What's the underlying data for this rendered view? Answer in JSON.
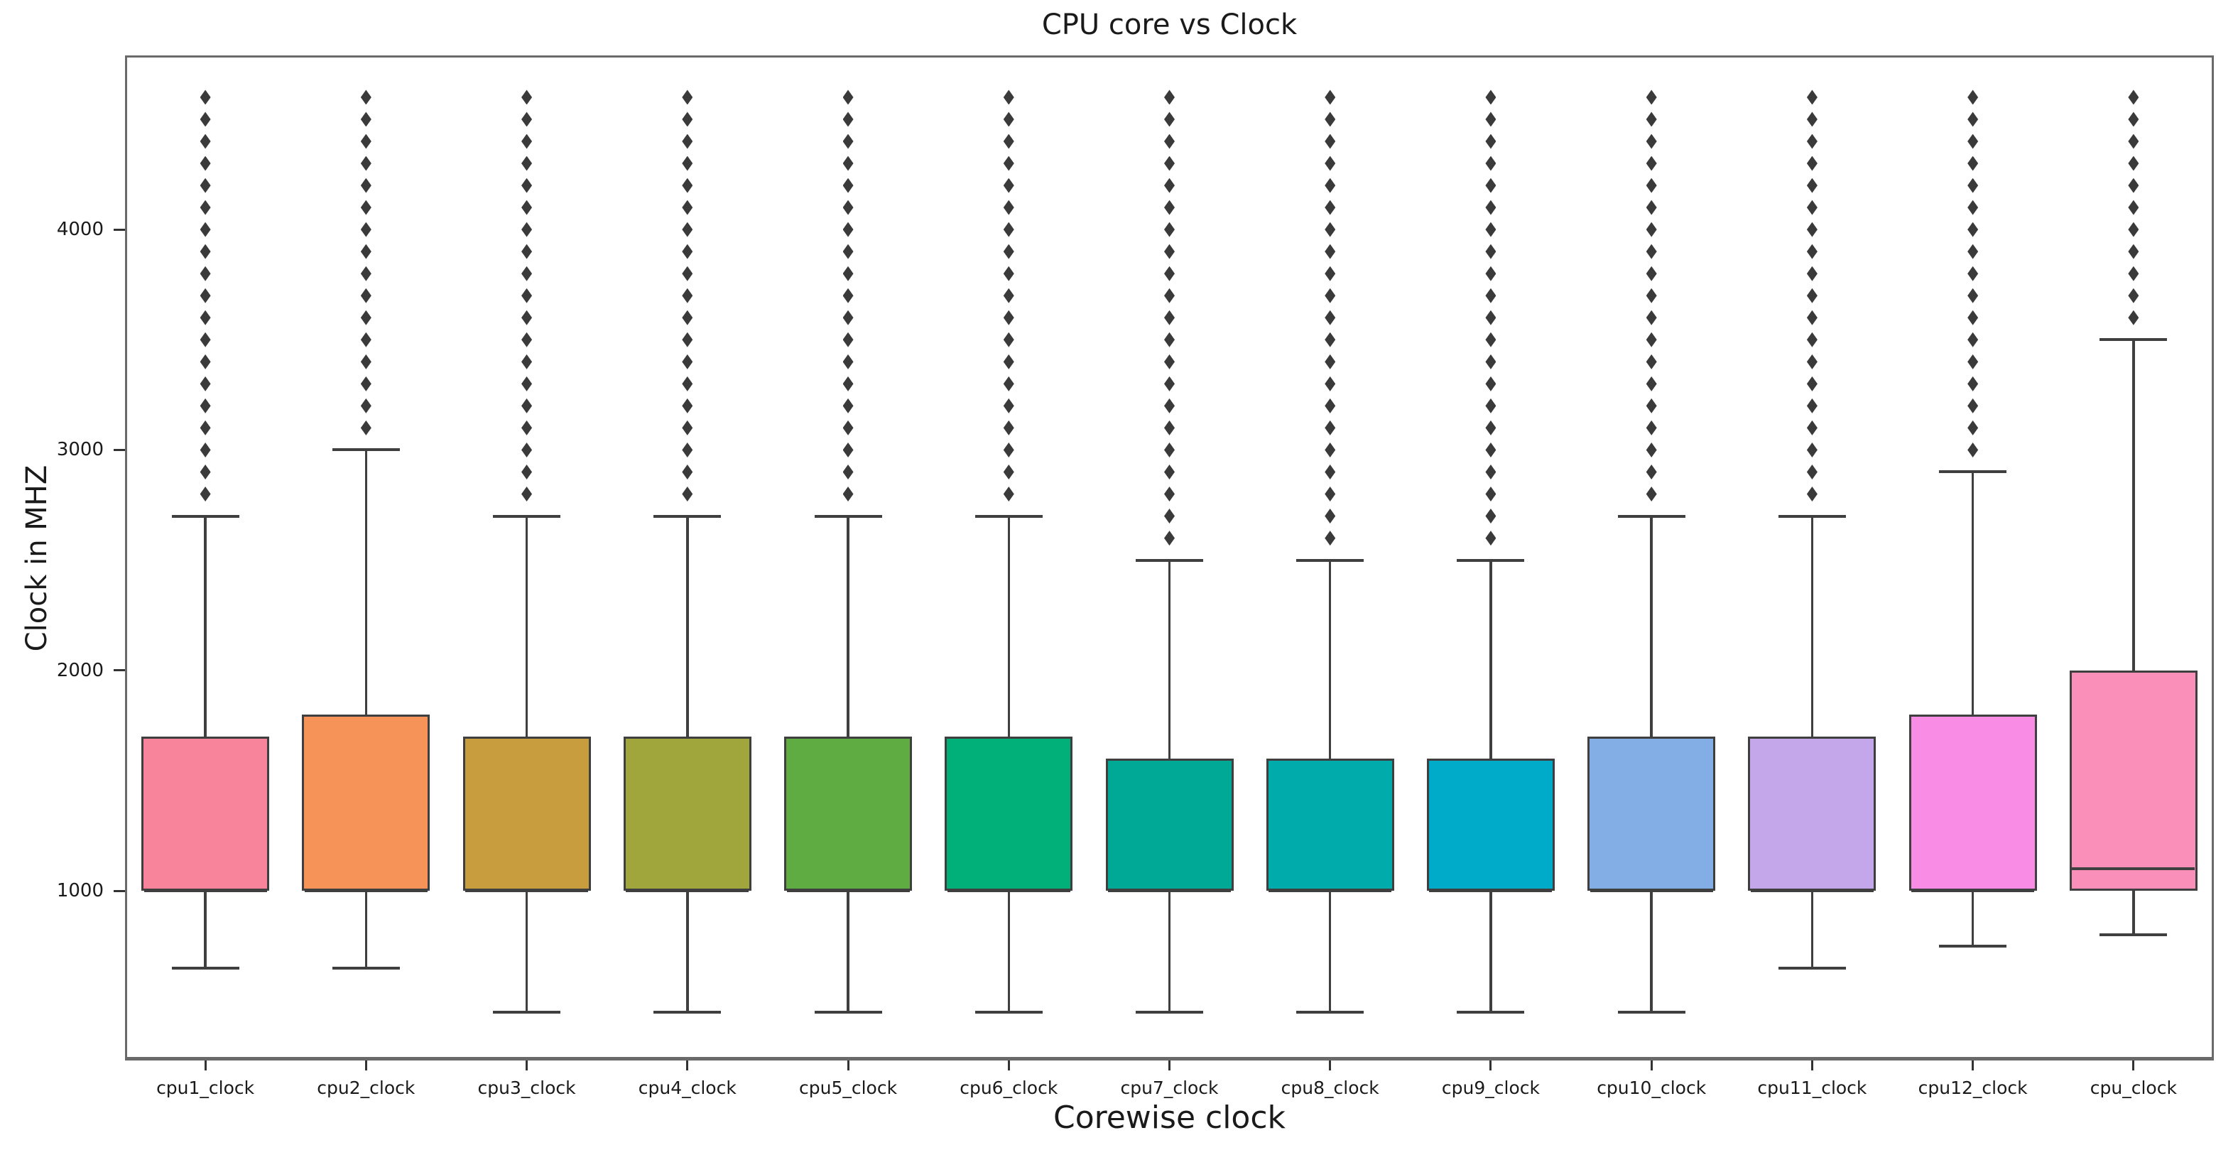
{
  "figure": {
    "title": "CPU core vs Clock",
    "x_axis_label": "Corewise clock",
    "y_axis_label": "Clock in MHZ",
    "background_color": "#ffffff"
  },
  "style": {
    "box_edge_color": "#3f3f3f",
    "whisker_color": "#3f3f3f",
    "flier_color": "#3a3a3a",
    "spine_color": "#6a6a6a",
    "text_color": "#1a1a1a"
  },
  "chart_data": {
    "type": "box",
    "title": "CPU core vs Clock",
    "xlabel": "Corewise clock",
    "ylabel": "Clock in MHZ",
    "ylim": [
      230,
      4790
    ],
    "yticks": [
      1000,
      2000,
      3000,
      4000
    ],
    "grid": false,
    "legend": false,
    "categories": [
      "cpu1_clock",
      "cpu2_clock",
      "cpu3_clock",
      "cpu4_clock",
      "cpu5_clock",
      "cpu6_clock",
      "cpu7_clock",
      "cpu8_clock",
      "cpu9_clock",
      "cpu10_clock",
      "cpu11_clock",
      "cpu12_clock",
      "cpu_clock"
    ],
    "series": [
      {
        "label": "cpu1_clock",
        "color": "#f8849b",
        "whisker_low": 650,
        "q1": 1000,
        "median": 1000,
        "q3": 1700,
        "whisker_high": 2700,
        "fliers": [
          2800,
          2900,
          3000,
          3100,
          3200,
          3300,
          3400,
          3500,
          3600,
          3700,
          3800,
          3900,
          4000,
          4100,
          4200,
          4300,
          4400,
          4500,
          4600
        ]
      },
      {
        "label": "cpu2_clock",
        "color": "#f59358",
        "whisker_low": 650,
        "q1": 1000,
        "median": 1000,
        "q3": 1800,
        "whisker_high": 3000,
        "fliers": [
          3100,
          3200,
          3300,
          3400,
          3500,
          3600,
          3700,
          3800,
          3900,
          4000,
          4100,
          4200,
          4300,
          4400,
          4500,
          4600
        ]
      },
      {
        "label": "cpu3_clock",
        "color": "#c79d3d",
        "whisker_low": 450,
        "q1": 1000,
        "median": 1000,
        "q3": 1700,
        "whisker_high": 2700,
        "fliers": [
          2800,
          2900,
          3000,
          3100,
          3200,
          3300,
          3400,
          3500,
          3600,
          3700,
          3800,
          3900,
          4000,
          4100,
          4200,
          4300,
          4400,
          4500,
          4600
        ]
      },
      {
        "label": "cpu4_clock",
        "color": "#a0a53c",
        "whisker_low": 450,
        "q1": 1000,
        "median": 1000,
        "q3": 1700,
        "whisker_high": 2700,
        "fliers": [
          2800,
          2900,
          3000,
          3100,
          3200,
          3300,
          3400,
          3500,
          3600,
          3700,
          3800,
          3900,
          4000,
          4100,
          4200,
          4300,
          4400,
          4500,
          4600
        ]
      },
      {
        "label": "cpu5_clock",
        "color": "#5fac42",
        "whisker_low": 450,
        "q1": 1000,
        "median": 1000,
        "q3": 1700,
        "whisker_high": 2700,
        "fliers": [
          2800,
          2900,
          3000,
          3100,
          3200,
          3300,
          3400,
          3500,
          3600,
          3700,
          3800,
          3900,
          4000,
          4100,
          4200,
          4300,
          4400,
          4500,
          4600
        ]
      },
      {
        "label": "cpu6_clock",
        "color": "#00b078",
        "whisker_low": 450,
        "q1": 1000,
        "median": 1000,
        "q3": 1700,
        "whisker_high": 2700,
        "fliers": [
          2800,
          2900,
          3000,
          3100,
          3200,
          3300,
          3400,
          3500,
          3600,
          3700,
          3800,
          3900,
          4000,
          4100,
          4200,
          4300,
          4400,
          4500,
          4600
        ]
      },
      {
        "label": "cpu7_clock",
        "color": "#00a996",
        "whisker_low": 450,
        "q1": 1000,
        "median": 1000,
        "q3": 1600,
        "whisker_high": 2500,
        "fliers": [
          2600,
          2700,
          2800,
          2900,
          3000,
          3100,
          3200,
          3300,
          3400,
          3500,
          3600,
          3700,
          3800,
          3900,
          4000,
          4100,
          4200,
          4300,
          4400,
          4500,
          4600
        ]
      },
      {
        "label": "cpu8_clock",
        "color": "#00abac",
        "whisker_low": 450,
        "q1": 1000,
        "median": 1000,
        "q3": 1600,
        "whisker_high": 2500,
        "fliers": [
          2600,
          2700,
          2800,
          2900,
          3000,
          3100,
          3200,
          3300,
          3400,
          3500,
          3600,
          3700,
          3800,
          3900,
          4000,
          4100,
          4200,
          4300,
          4400,
          4500,
          4600
        ]
      },
      {
        "label": "cpu9_clock",
        "color": "#00aac9",
        "whisker_low": 450,
        "q1": 1000,
        "median": 1000,
        "q3": 1600,
        "whisker_high": 2500,
        "fliers": [
          2600,
          2700,
          2800,
          2900,
          3000,
          3100,
          3200,
          3300,
          3400,
          3500,
          3600,
          3700,
          3800,
          3900,
          4000,
          4100,
          4200,
          4300,
          4400,
          4500,
          4600
        ]
      },
      {
        "label": "cpu10_clock",
        "color": "#82ade5",
        "whisker_low": 450,
        "q1": 1000,
        "median": 1000,
        "q3": 1700,
        "whisker_high": 2700,
        "fliers": [
          2800,
          2900,
          3000,
          3100,
          3200,
          3300,
          3400,
          3500,
          3600,
          3700,
          3800,
          3900,
          4000,
          4100,
          4200,
          4300,
          4400,
          4500,
          4600
        ]
      },
      {
        "label": "cpu11_clock",
        "color": "#c4a6ea",
        "whisker_low": 650,
        "q1": 1000,
        "median": 1000,
        "q3": 1700,
        "whisker_high": 2700,
        "fliers": [
          2800,
          2900,
          3000,
          3100,
          3200,
          3300,
          3400,
          3500,
          3600,
          3700,
          3800,
          3900,
          4000,
          4100,
          4200,
          4300,
          4400,
          4500,
          4600
        ]
      },
      {
        "label": "cpu12_clock",
        "color": "#f98ce4",
        "whisker_low": 750,
        "q1": 1000,
        "median": 1000,
        "q3": 1800,
        "whisker_high": 2900,
        "fliers": [
          3000,
          3100,
          3200,
          3300,
          3400,
          3500,
          3600,
          3700,
          3800,
          3900,
          4000,
          4100,
          4200,
          4300,
          4400,
          4500,
          4600
        ]
      },
      {
        "label": "cpu_clock",
        "color": "#fa90b9",
        "whisker_low": 800,
        "q1": 1000,
        "median": 1100,
        "q3": 2000,
        "whisker_high": 3500,
        "fliers": [
          3600,
          3700,
          3800,
          3900,
          4000,
          4100,
          4200,
          4300,
          4400,
          4500,
          4600
        ]
      }
    ]
  }
}
